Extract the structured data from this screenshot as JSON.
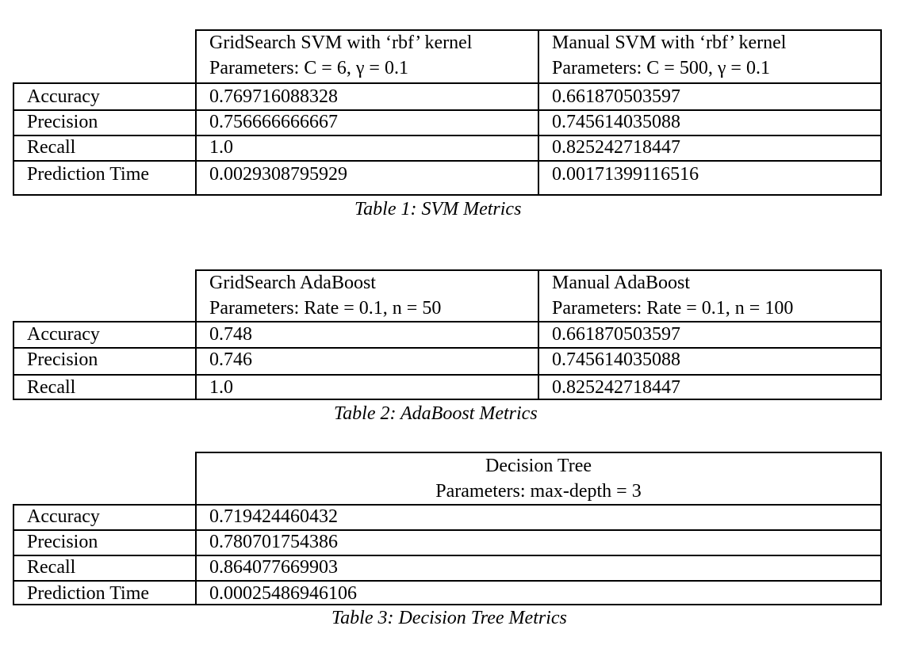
{
  "tables": [
    {
      "caption": "Table 1: SVM Metrics",
      "headers": [
        {
          "line1": "GridSearch SVM with ‘rbf’ kernel",
          "line2": "Parameters: C = 6, γ = 0.1"
        },
        {
          "line1": "Manual SVM with ‘rbf’ kernel",
          "line2": "Parameters: C = 500, γ = 0.1"
        }
      ],
      "rows": [
        {
          "label": "Accuracy",
          "values": [
            "0.769716088328",
            "0.661870503597"
          ]
        },
        {
          "label": "Precision",
          "values": [
            "0.756666666667",
            "0.745614035088"
          ]
        },
        {
          "label": "Recall",
          "values": [
            "1.0",
            "0.825242718447"
          ]
        },
        {
          "label": "Prediction Time",
          "values": [
            "0.0029308795929",
            "0.00171399116516"
          ]
        }
      ]
    },
    {
      "caption": "Table 2: AdaBoost Metrics",
      "headers": [
        {
          "line1": "GridSearch AdaBoost",
          "line2": "Parameters: Rate = 0.1, n = 50"
        },
        {
          "line1": "Manual AdaBoost",
          "line2": "Parameters: Rate = 0.1, n = 100"
        }
      ],
      "rows": [
        {
          "label": "Accuracy",
          "values": [
            "0.748",
            "0.661870503597"
          ]
        },
        {
          "label": "Precision",
          "values": [
            "0.746",
            "0.745614035088"
          ]
        },
        {
          "label": "Recall",
          "values": [
            "1.0",
            "0.825242718447"
          ]
        }
      ]
    },
    {
      "caption": "Table 3: Decision Tree Metrics",
      "headers": [
        {
          "line1": "Decision Tree",
          "line2": "Parameters: max-depth = 3"
        }
      ],
      "rows": [
        {
          "label": "Accuracy",
          "values": [
            "0.719424460432"
          ]
        },
        {
          "label": "Precision",
          "values": [
            "0.780701754386"
          ]
        },
        {
          "label": "Recall",
          "values": [
            "0.864077669903"
          ]
        },
        {
          "label": "Prediction Time",
          "values": [
            "0.00025486946106"
          ]
        }
      ]
    }
  ]
}
